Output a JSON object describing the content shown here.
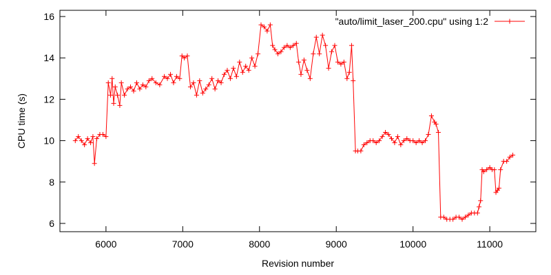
{
  "chart_data": {
    "type": "line",
    "title": "",
    "xlabel": "Revision number",
    "ylabel": "CPU time (s)",
    "xlim": [
      5400,
      11600
    ],
    "ylim": [
      5.6,
      16.3
    ],
    "xticks": [
      6000,
      7000,
      8000,
      9000,
      10000,
      11000
    ],
    "xtick_labels": [
      "6000",
      "7000",
      "8000",
      "9000",
      "10000",
      "11000"
    ],
    "yticks": [
      6,
      8,
      10,
      12,
      14,
      16
    ],
    "ytick_labels": [
      "6",
      "8",
      "10",
      "12",
      "14",
      "16"
    ],
    "grid": false,
    "legend_position": "top-right",
    "series_color": "#ff0000",
    "series": [
      {
        "name": "\"auto/limit_laser_200.cpu\" using 1:2",
        "marker": "plus",
        "x": [
          5600,
          5640,
          5680,
          5720,
          5760,
          5800,
          5830,
          5850,
          5880,
          5920,
          5960,
          6000,
          6030,
          6060,
          6080,
          6100,
          6120,
          6150,
          6180,
          6200,
          6240,
          6280,
          6320,
          6360,
          6400,
          6440,
          6480,
          6520,
          6560,
          6600,
          6650,
          6700,
          6760,
          6800,
          6840,
          6880,
          6920,
          6960,
          6990,
          7020,
          7060,
          7100,
          7140,
          7180,
          7220,
          7260,
          7300,
          7340,
          7380,
          7420,
          7460,
          7500,
          7540,
          7580,
          7620,
          7660,
          7700,
          7740,
          7780,
          7820,
          7860,
          7900,
          7940,
          7980,
          8020,
          8060,
          8100,
          8140,
          8170,
          8200,
          8240,
          8280,
          8320,
          8360,
          8400,
          8440,
          8480,
          8510,
          8540,
          8580,
          8620,
          8660,
          8700,
          8740,
          8780,
          8820,
          8860,
          8900,
          8940,
          8980,
          9020,
          9060,
          9100,
          9140,
          9170,
          9200,
          9220,
          9250,
          9280,
          9320,
          9360,
          9400,
          9440,
          9480,
          9520,
          9560,
          9600,
          9640,
          9680,
          9720,
          9760,
          9800,
          9840,
          9880,
          9920,
          9960,
          10000,
          10040,
          10080,
          10120,
          10160,
          10200,
          10240,
          10280,
          10300,
          10330,
          10360,
          10400,
          10440,
          10480,
          10520,
          10560,
          10600,
          10640,
          10680,
          10720,
          10760,
          10800,
          10840,
          10860,
          10880,
          10900,
          10920,
          10960,
          11000,
          11030,
          11060,
          11080,
          11100,
          11120,
          11140,
          11180,
          11220,
          11260,
          11300
        ],
        "y": [
          10.0,
          10.2,
          10.0,
          9.8,
          10.1,
          9.9,
          10.2,
          8.9,
          10.1,
          10.3,
          10.3,
          10.2,
          12.8,
          12.2,
          13.0,
          11.8,
          12.6,
          12.2,
          11.7,
          12.8,
          12.2,
          12.5,
          12.6,
          12.4,
          12.8,
          12.5,
          12.7,
          12.6,
          12.9,
          13.0,
          12.8,
          12.7,
          13.1,
          13.0,
          13.2,
          12.8,
          13.1,
          13.0,
          14.1,
          14.0,
          14.1,
          12.6,
          12.8,
          12.2,
          12.9,
          12.3,
          12.5,
          12.7,
          13.0,
          12.5,
          12.9,
          12.8,
          13.2,
          13.4,
          13.0,
          13.5,
          13.1,
          13.8,
          13.3,
          13.6,
          13.4,
          14.0,
          13.6,
          14.2,
          15.6,
          15.5,
          15.3,
          15.6,
          14.6,
          14.4,
          14.2,
          14.3,
          14.5,
          14.6,
          14.5,
          14.6,
          14.7,
          13.8,
          13.2,
          13.9,
          13.4,
          13.0,
          14.2,
          15.0,
          14.2,
          15.1,
          14.6,
          13.5,
          14.3,
          14.6,
          13.8,
          13.7,
          13.8,
          13.0,
          13.3,
          14.6,
          12.9,
          9.5,
          9.5,
          9.5,
          9.8,
          9.9,
          10.0,
          10.0,
          9.9,
          10.0,
          10.2,
          10.4,
          10.3,
          10.1,
          9.9,
          10.2,
          9.8,
          10.0,
          10.1,
          10.0,
          10.0,
          9.9,
          10.0,
          9.9,
          10.0,
          10.3,
          11.2,
          10.9,
          10.8,
          10.4,
          6.3,
          6.3,
          6.2,
          6.2,
          6.2,
          6.3,
          6.3,
          6.2,
          6.3,
          6.4,
          6.5,
          6.5,
          6.5,
          6.8,
          7.1,
          8.6,
          8.5,
          8.6,
          8.7,
          8.6,
          8.6,
          7.5,
          7.6,
          7.7,
          8.6,
          9.0,
          9.0,
          9.2,
          9.3
        ]
      }
    ]
  }
}
